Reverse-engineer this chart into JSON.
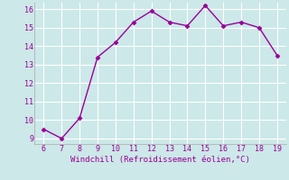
{
  "x": [
    6,
    7,
    8,
    9,
    10,
    11,
    12,
    13,
    14,
    15,
    16,
    17,
    18,
    19
  ],
  "y": [
    9.5,
    9.0,
    10.1,
    13.4,
    14.2,
    15.3,
    15.9,
    15.3,
    15.1,
    16.2,
    15.1,
    15.3,
    15.0,
    13.5
  ],
  "line_color": "#990099",
  "marker_color": "#990099",
  "bg_color": "#cce8e8",
  "grid_color": "#ffffff",
  "xlabel": "Windchill (Refroidissement éolien,°C)",
  "xlim": [
    6,
    19
  ],
  "ylim": [
    9,
    16
  ],
  "yticks": [
    9,
    10,
    11,
    12,
    13,
    14,
    15,
    16
  ],
  "xticks": [
    6,
    7,
    8,
    9,
    10,
    11,
    12,
    13,
    14,
    15,
    16,
    17,
    18,
    19
  ],
  "xlabel_color": "#990099",
  "tick_color": "#990099"
}
